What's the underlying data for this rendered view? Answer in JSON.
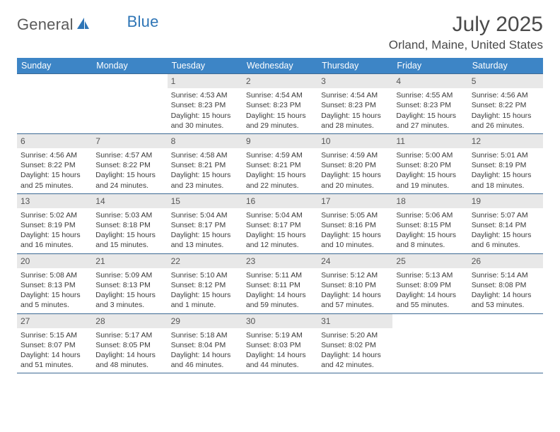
{
  "brand": {
    "name_a": "General",
    "name_b": "Blue"
  },
  "title": "July 2025",
  "location": "Orland, Maine, United States",
  "colors": {
    "header_bg": "#3d85c6",
    "header_text": "#ffffff",
    "daynum_bg": "#e8e8e8",
    "daynum_text": "#555555",
    "body_text": "#3a3a3a",
    "rule": "#3d6a94",
    "title_text": "#4a4a4a",
    "brand_gray": "#5a5a5a",
    "brand_blue": "#2e75b6"
  },
  "text_labels": {
    "sunrise": "Sunrise: ",
    "sunset": "Sunset: ",
    "daylight": "Daylight: "
  },
  "weekdays": [
    "Sunday",
    "Monday",
    "Tuesday",
    "Wednesday",
    "Thursday",
    "Friday",
    "Saturday"
  ],
  "weeks": [
    [
      null,
      null,
      {
        "n": "1",
        "sunrise": "4:53 AM",
        "sunset": "8:23 PM",
        "daylight": "15 hours and 30 minutes."
      },
      {
        "n": "2",
        "sunrise": "4:54 AM",
        "sunset": "8:23 PM",
        "daylight": "15 hours and 29 minutes."
      },
      {
        "n": "3",
        "sunrise": "4:54 AM",
        "sunset": "8:23 PM",
        "daylight": "15 hours and 28 minutes."
      },
      {
        "n": "4",
        "sunrise": "4:55 AM",
        "sunset": "8:23 PM",
        "daylight": "15 hours and 27 minutes."
      },
      {
        "n": "5",
        "sunrise": "4:56 AM",
        "sunset": "8:22 PM",
        "daylight": "15 hours and 26 minutes."
      }
    ],
    [
      {
        "n": "6",
        "sunrise": "4:56 AM",
        "sunset": "8:22 PM",
        "daylight": "15 hours and 25 minutes."
      },
      {
        "n": "7",
        "sunrise": "4:57 AM",
        "sunset": "8:22 PM",
        "daylight": "15 hours and 24 minutes."
      },
      {
        "n": "8",
        "sunrise": "4:58 AM",
        "sunset": "8:21 PM",
        "daylight": "15 hours and 23 minutes."
      },
      {
        "n": "9",
        "sunrise": "4:59 AM",
        "sunset": "8:21 PM",
        "daylight": "15 hours and 22 minutes."
      },
      {
        "n": "10",
        "sunrise": "4:59 AM",
        "sunset": "8:20 PM",
        "daylight": "15 hours and 20 minutes."
      },
      {
        "n": "11",
        "sunrise": "5:00 AM",
        "sunset": "8:20 PM",
        "daylight": "15 hours and 19 minutes."
      },
      {
        "n": "12",
        "sunrise": "5:01 AM",
        "sunset": "8:19 PM",
        "daylight": "15 hours and 18 minutes."
      }
    ],
    [
      {
        "n": "13",
        "sunrise": "5:02 AM",
        "sunset": "8:19 PM",
        "daylight": "15 hours and 16 minutes."
      },
      {
        "n": "14",
        "sunrise": "5:03 AM",
        "sunset": "8:18 PM",
        "daylight": "15 hours and 15 minutes."
      },
      {
        "n": "15",
        "sunrise": "5:04 AM",
        "sunset": "8:17 PM",
        "daylight": "15 hours and 13 minutes."
      },
      {
        "n": "16",
        "sunrise": "5:04 AM",
        "sunset": "8:17 PM",
        "daylight": "15 hours and 12 minutes."
      },
      {
        "n": "17",
        "sunrise": "5:05 AM",
        "sunset": "8:16 PM",
        "daylight": "15 hours and 10 minutes."
      },
      {
        "n": "18",
        "sunrise": "5:06 AM",
        "sunset": "8:15 PM",
        "daylight": "15 hours and 8 minutes."
      },
      {
        "n": "19",
        "sunrise": "5:07 AM",
        "sunset": "8:14 PM",
        "daylight": "15 hours and 6 minutes."
      }
    ],
    [
      {
        "n": "20",
        "sunrise": "5:08 AM",
        "sunset": "8:13 PM",
        "daylight": "15 hours and 5 minutes."
      },
      {
        "n": "21",
        "sunrise": "5:09 AM",
        "sunset": "8:13 PM",
        "daylight": "15 hours and 3 minutes."
      },
      {
        "n": "22",
        "sunrise": "5:10 AM",
        "sunset": "8:12 PM",
        "daylight": "15 hours and 1 minute."
      },
      {
        "n": "23",
        "sunrise": "5:11 AM",
        "sunset": "8:11 PM",
        "daylight": "14 hours and 59 minutes."
      },
      {
        "n": "24",
        "sunrise": "5:12 AM",
        "sunset": "8:10 PM",
        "daylight": "14 hours and 57 minutes."
      },
      {
        "n": "25",
        "sunrise": "5:13 AM",
        "sunset": "8:09 PM",
        "daylight": "14 hours and 55 minutes."
      },
      {
        "n": "26",
        "sunrise": "5:14 AM",
        "sunset": "8:08 PM",
        "daylight": "14 hours and 53 minutes."
      }
    ],
    [
      {
        "n": "27",
        "sunrise": "5:15 AM",
        "sunset": "8:07 PM",
        "daylight": "14 hours and 51 minutes."
      },
      {
        "n": "28",
        "sunrise": "5:17 AM",
        "sunset": "8:05 PM",
        "daylight": "14 hours and 48 minutes."
      },
      {
        "n": "29",
        "sunrise": "5:18 AM",
        "sunset": "8:04 PM",
        "daylight": "14 hours and 46 minutes."
      },
      {
        "n": "30",
        "sunrise": "5:19 AM",
        "sunset": "8:03 PM",
        "daylight": "14 hours and 44 minutes."
      },
      {
        "n": "31",
        "sunrise": "5:20 AM",
        "sunset": "8:02 PM",
        "daylight": "14 hours and 42 minutes."
      },
      null,
      null
    ]
  ]
}
